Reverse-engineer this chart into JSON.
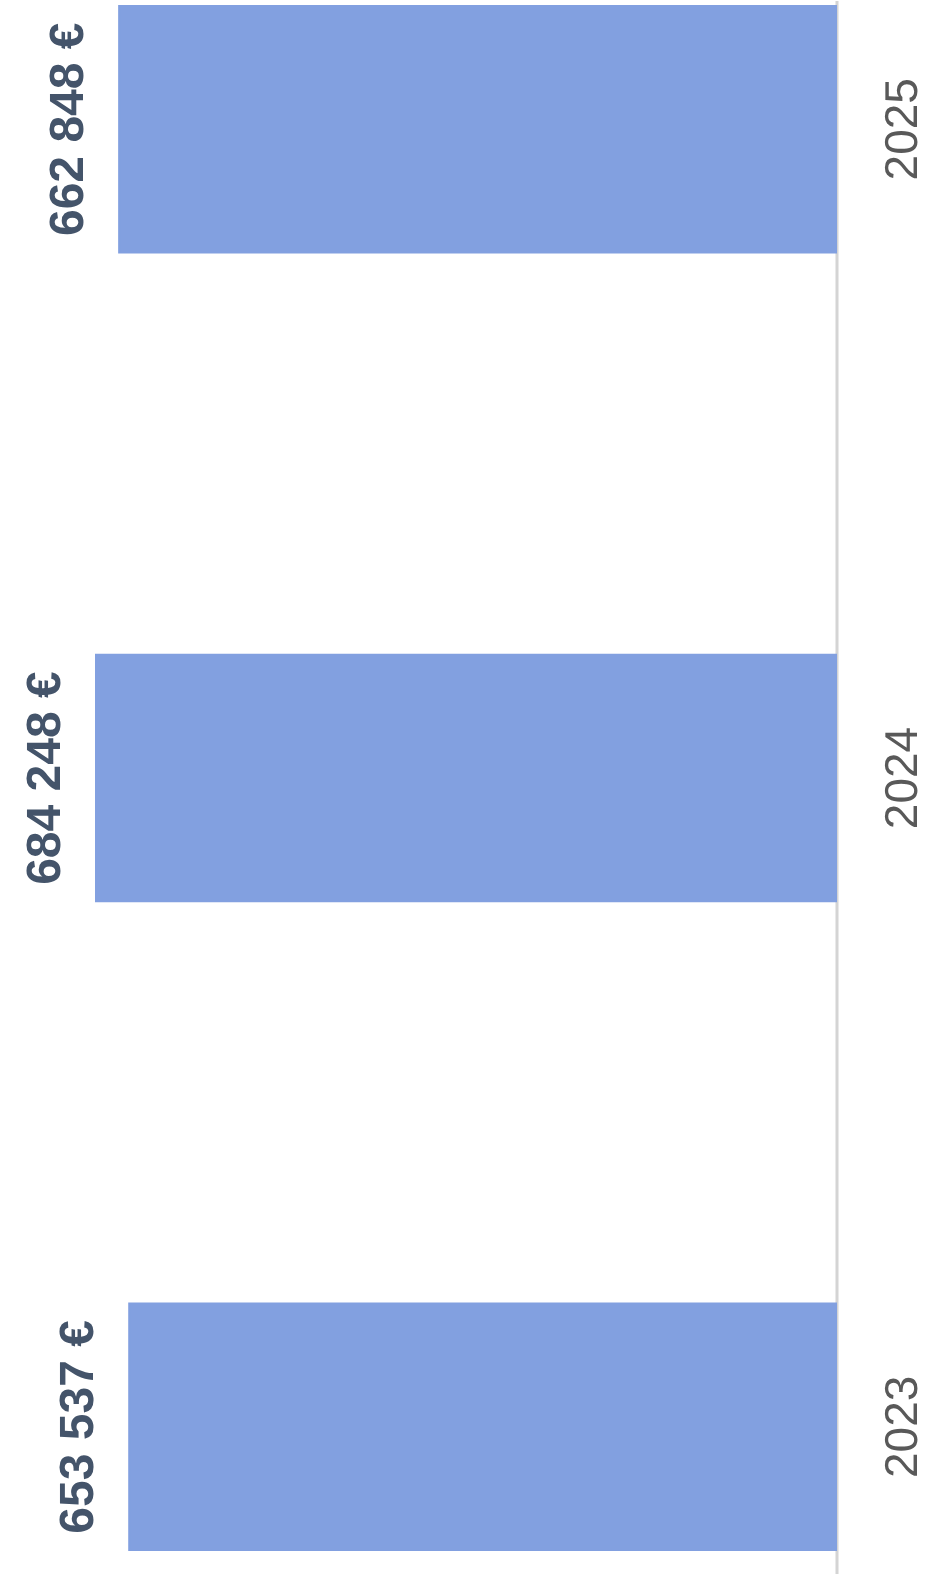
{
  "chart_data": {
    "type": "bar",
    "orientation": "horizontal",
    "categories": [
      "2025",
      "2024",
      "2023"
    ],
    "values": [
      662848,
      684248,
      653537
    ],
    "value_labels": [
      "662 848 €",
      "684 248 €",
      "653 537 €"
    ],
    "color": "#82a0e0"
  }
}
